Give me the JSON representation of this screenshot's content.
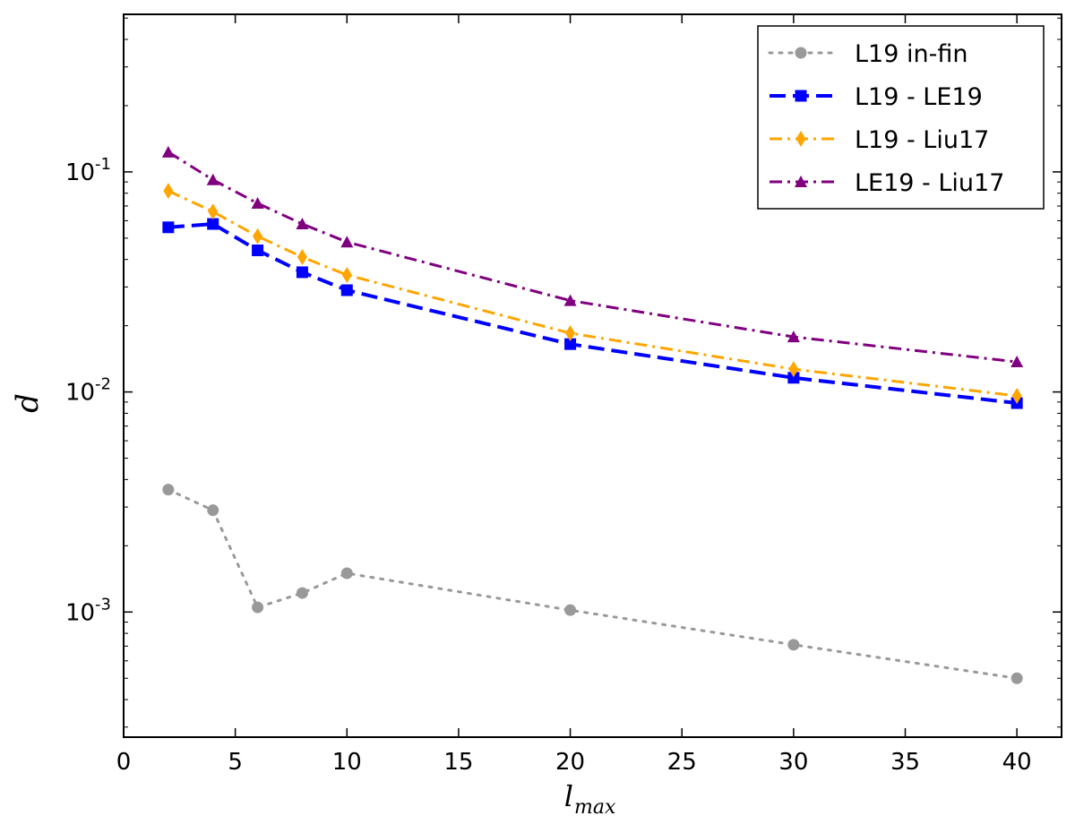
{
  "chart_data": {
    "type": "line",
    "title": "",
    "xlabel": "l",
    "xlabel_subscript": "max",
    "ylabel": "d",
    "xlim": [
      0,
      42
    ],
    "ylim": [
      0.00027,
      0.52
    ],
    "yscale": "log",
    "xticks": [
      0,
      5,
      10,
      15,
      20,
      25,
      30,
      35,
      40
    ],
    "yticks": [
      {
        "value": 0.1,
        "base": "10",
        "exp": "-1"
      },
      {
        "value": 0.01,
        "base": "10",
        "exp": "-2"
      },
      {
        "value": 0.001,
        "base": "10",
        "exp": "-3"
      }
    ],
    "legend_position": "top-right",
    "grid": false,
    "series": [
      {
        "name": "L19 in-fin",
        "color": "#999999",
        "linestyle": "dotted",
        "marker": "circle",
        "x": [
          2,
          4,
          6,
          8,
          10,
          20,
          30,
          40
        ],
        "y": [
          0.0036,
          0.0029,
          0.00105,
          0.00122,
          0.0015,
          0.00102,
          0.00071,
          0.0005
        ]
      },
      {
        "name": "L19 - LE19",
        "color": "#0000ff",
        "linestyle": "dashed",
        "marker": "square",
        "x": [
          2,
          4,
          6,
          8,
          10,
          20,
          30,
          40
        ],
        "y": [
          0.056,
          0.058,
          0.044,
          0.035,
          0.029,
          0.0165,
          0.0116,
          0.0089
        ]
      },
      {
        "name": "L19 - Liu17",
        "color": "#ffa500",
        "linestyle": "dashdot",
        "marker": "diamond",
        "x": [
          2,
          4,
          6,
          8,
          10,
          20,
          30,
          40
        ],
        "y": [
          0.082,
          0.066,
          0.051,
          0.041,
          0.034,
          0.0185,
          0.0127,
          0.0096
        ]
      },
      {
        "name": "LE19 - Liu17",
        "color": "#800080",
        "linestyle": "dashdot",
        "marker": "triangle",
        "x": [
          2,
          4,
          6,
          8,
          10,
          20,
          30,
          40
        ],
        "y": [
          0.123,
          0.092,
          0.072,
          0.058,
          0.048,
          0.026,
          0.0178,
          0.0137
        ]
      }
    ]
  }
}
